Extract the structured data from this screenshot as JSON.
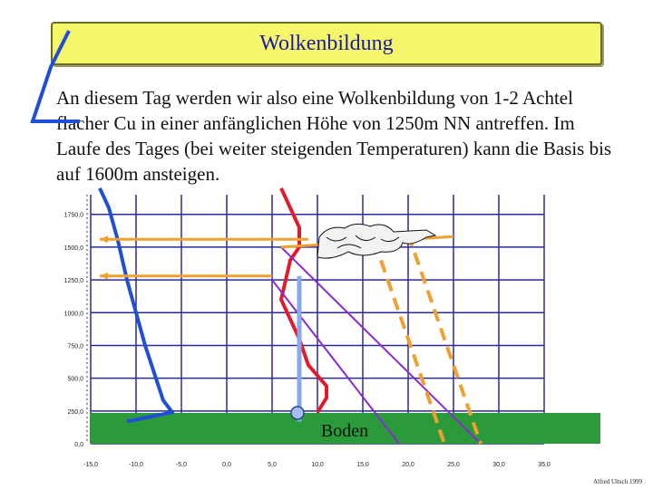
{
  "title": "Wolkenbildung",
  "body_text": "An diesem Tag werden wir also eine Wolkenbildung von 1-2 Achtel flacher Cu in einer anfänglichen Höhe von 1250m NN antreffen. Im Laufe des Tages (bei weiter steigenden Temperaturen) kann die Basis bis auf 1600m ansteigen.",
  "ground_label": "Boden",
  "author": "Alfred Ultsch 1999",
  "colors": {
    "title_bg": "#f6f66a",
    "title_text": "#1a1aa6",
    "grid": "#2a2a9a",
    "ground": "#2a9a3a",
    "dewpoint": "#1f4fd6",
    "temperature": "#e01c2c",
    "dry_adiabat": "#8a2ad0",
    "dry_adiabat_dashed": "#f0a030",
    "base_arrow": "#f0a030",
    "base_column": "#8aa8f0"
  },
  "chart_data": {
    "type": "line",
    "title": "",
    "xlabel": "",
    "ylabel": "",
    "x_ticks": [
      "-15,0",
      "-10,0",
      "-5,0",
      "0,0",
      "5,0",
      "10,0",
      "15,0",
      "20,0",
      "25,0",
      "30,0",
      "35,0"
    ],
    "y_ticks": [
      "0,0",
      "250,0",
      "500,0",
      "750,0",
      "1000,0",
      "1250,0",
      "1500,0",
      "1750,0"
    ],
    "xlim": [
      -15,
      35
    ],
    "ylim": [
      0,
      1900
    ],
    "series": [
      {
        "name": "",
        "style": "dewpoint",
        "points": [
          [
            -11,
            170
          ],
          [
            -6,
            240
          ],
          [
            -7,
            330
          ],
          [
            -9,
            750
          ],
          [
            -11,
            1250
          ],
          [
            -12,
            1550
          ],
          [
            -13,
            1800
          ],
          [
            -14,
            1950
          ]
        ]
      },
      {
        "name": "",
        "style": "temperature",
        "points": [
          [
            10,
            240
          ],
          [
            11,
            350
          ],
          [
            11,
            440
          ],
          [
            9,
            600
          ],
          [
            8,
            800
          ],
          [
            6,
            1100
          ],
          [
            7,
            1400
          ],
          [
            8,
            1500
          ],
          [
            8,
            1650
          ],
          [
            7,
            1800
          ],
          [
            6,
            1950
          ]
        ]
      },
      {
        "name": "",
        "style": "dry_adiabat",
        "points": [
          [
            6,
            1500
          ],
          [
            28,
            0
          ]
        ]
      },
      {
        "name": "",
        "style": "dry_adiabat",
        "points": [
          [
            5,
            1250
          ],
          [
            19,
            0
          ]
        ]
      },
      {
        "name": "",
        "style": "dry_adiabat_dashed",
        "points": [
          [
            20,
            1600
          ],
          [
            28,
            0
          ]
        ]
      },
      {
        "name": "",
        "style": "dry_adiabat_dashed",
        "points": [
          [
            17,
            1400
          ],
          [
            24,
            0
          ]
        ]
      },
      {
        "name": "",
        "style": "base_arrow",
        "points": [
          [
            9,
            1560
          ],
          [
            -14,
            1560
          ]
        ]
      },
      {
        "name": "",
        "style": "base_arrow",
        "points": [
          [
            5,
            1280
          ],
          [
            -14,
            1280
          ]
        ]
      },
      {
        "name": "",
        "style": "base_arrow",
        "points": [
          [
            6,
            1500
          ],
          [
            25,
            1580
          ]
        ]
      },
      {
        "name": "",
        "style": "base_column",
        "points": [
          [
            8,
            170
          ],
          [
            8,
            1280
          ]
        ]
      }
    ]
  }
}
